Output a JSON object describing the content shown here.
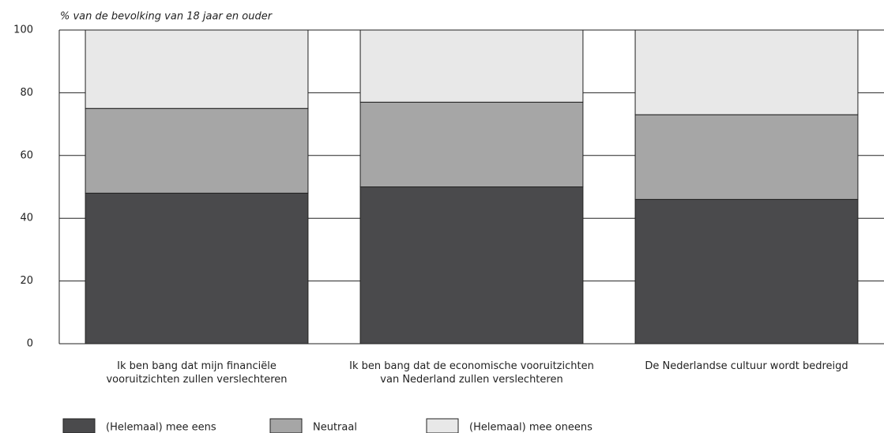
{
  "chart_data": {
    "type": "stacked_bar",
    "subtitle": "% van de bevolking van 18 jaar en ouder",
    "categories": [
      [
        "Ik ben bang dat mijn financiële",
        "vooruitzichten zullen verslechteren"
      ],
      [
        "Ik ben bang dat de economische vooruitzichten",
        "van Nederland zullen verslechteren"
      ],
      [
        "De Nederlandse cultuur wordt bedreigd"
      ]
    ],
    "series": [
      {
        "name": "(Helemaal) mee eens",
        "color": "#4a4a4c",
        "values": [
          48,
          50,
          46
        ]
      },
      {
        "name": "Neutraal",
        "color": "#a6a6a6",
        "values": [
          27,
          27,
          27
        ]
      },
      {
        "name": "(Helemaal) mee oneens",
        "color": "#e8e8e8",
        "values": [
          25,
          23,
          27
        ]
      }
    ],
    "ylim": [
      0,
      100
    ],
    "yticks": [
      0,
      20,
      40,
      60,
      80,
      100
    ],
    "grid": true
  }
}
